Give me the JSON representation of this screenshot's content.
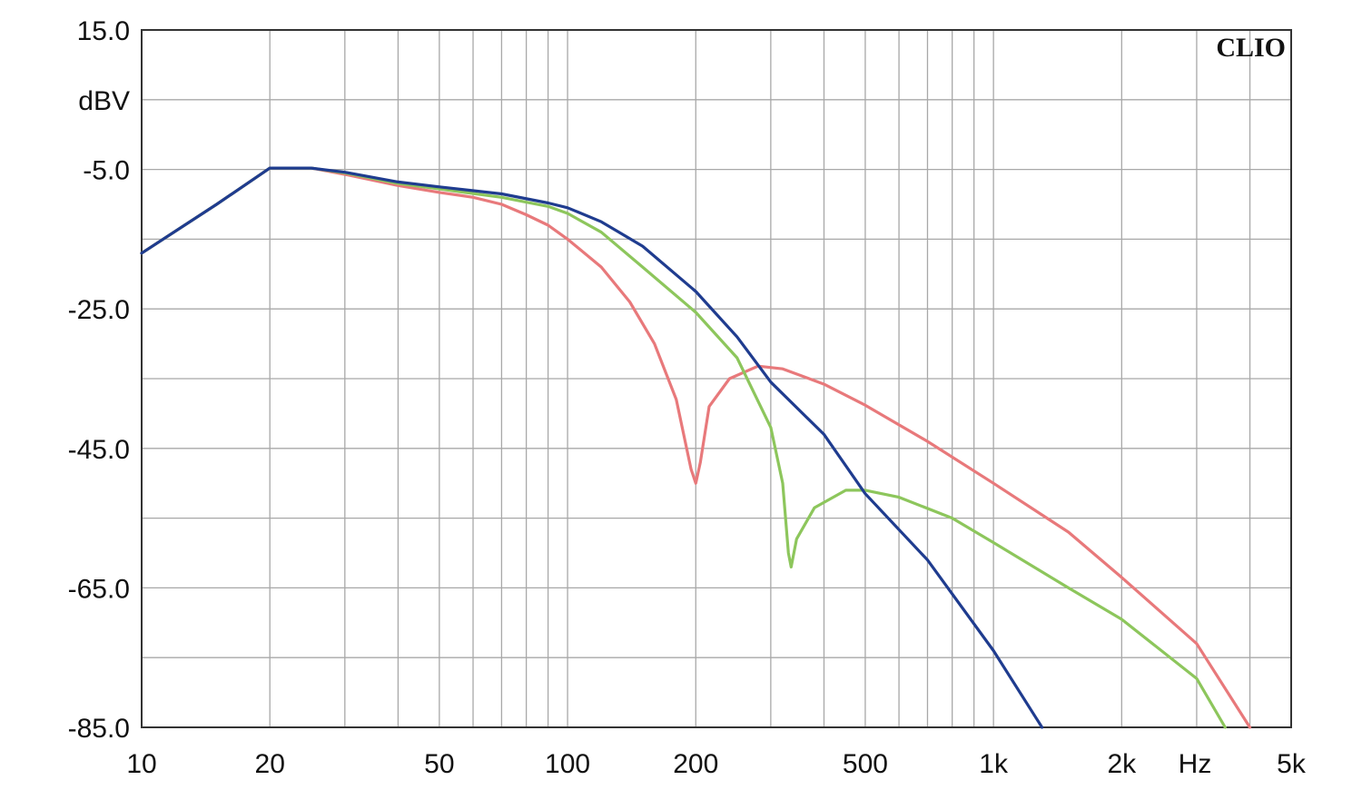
{
  "chart_data": {
    "type": "line",
    "brand": "CLIO",
    "ylabel": "dBV",
    "xlabel": "Hz",
    "x_scale": "log",
    "xlim": [
      10,
      5000
    ],
    "ylim": [
      -85,
      15
    ],
    "grid": true,
    "y_ticks": [
      {
        "value": 15,
        "label": "15.0"
      },
      {
        "value": -5,
        "label": "-5.0"
      },
      {
        "value": -25,
        "label": "-25.0"
      },
      {
        "value": -45,
        "label": "-45.0"
      },
      {
        "value": -65,
        "label": "-65.0"
      },
      {
        "value": -85,
        "label": "-85.0"
      }
    ],
    "y_grid_step": 10,
    "x_ticks": [
      {
        "value": 10,
        "label": "10"
      },
      {
        "value": 20,
        "label": "20"
      },
      {
        "value": 50,
        "label": "50"
      },
      {
        "value": 100,
        "label": "100"
      },
      {
        "value": 200,
        "label": "200"
      },
      {
        "value": 500,
        "label": "500"
      },
      {
        "value": 1000,
        "label": "1k"
      },
      {
        "value": 2000,
        "label": "2k"
      },
      {
        "value": 5000,
        "label": "5k"
      }
    ],
    "x_grid": [
      10,
      20,
      30,
      40,
      50,
      60,
      70,
      80,
      90,
      100,
      200,
      300,
      400,
      500,
      600,
      700,
      800,
      900,
      1000,
      2000,
      3000,
      4000,
      5000
    ],
    "series": [
      {
        "color": "#e8797b",
        "points": [
          [
            10,
            -17
          ],
          [
            15,
            -10
          ],
          [
            20,
            -4.8
          ],
          [
            25,
            -4.8
          ],
          [
            30,
            -5.7
          ],
          [
            40,
            -7.3
          ],
          [
            50,
            -8.3
          ],
          [
            60,
            -9
          ],
          [
            70,
            -10
          ],
          [
            80,
            -11.5
          ],
          [
            90,
            -13
          ],
          [
            100,
            -15
          ],
          [
            120,
            -19
          ],
          [
            140,
            -24
          ],
          [
            160,
            -30
          ],
          [
            180,
            -38
          ],
          [
            195,
            -48
          ],
          [
            200,
            -50
          ],
          [
            205,
            -47
          ],
          [
            215,
            -39
          ],
          [
            240,
            -35
          ],
          [
            280,
            -33.2
          ],
          [
            320,
            -33.6
          ],
          [
            400,
            -35.8
          ],
          [
            500,
            -38.8
          ],
          [
            700,
            -44
          ],
          [
            1000,
            -50
          ],
          [
            1500,
            -57
          ],
          [
            2000,
            -63.5
          ],
          [
            3000,
            -73
          ],
          [
            4000,
            -85
          ]
        ]
      },
      {
        "color": "#8dc65c",
        "points": [
          [
            10,
            -17
          ],
          [
            15,
            -10
          ],
          [
            20,
            -4.8
          ],
          [
            25,
            -4.8
          ],
          [
            30,
            -5.5
          ],
          [
            40,
            -7
          ],
          [
            50,
            -7.8
          ],
          [
            70,
            -9
          ],
          [
            90,
            -10.3
          ],
          [
            100,
            -11.3
          ],
          [
            120,
            -14
          ],
          [
            150,
            -19
          ],
          [
            200,
            -25.5
          ],
          [
            250,
            -32
          ],
          [
            300,
            -42
          ],
          [
            320,
            -50
          ],
          [
            330,
            -60
          ],
          [
            335,
            -62
          ],
          [
            345,
            -58
          ],
          [
            380,
            -53.5
          ],
          [
            450,
            -51
          ],
          [
            500,
            -51
          ],
          [
            600,
            -52
          ],
          [
            800,
            -55
          ],
          [
            1000,
            -58.5
          ],
          [
            1500,
            -65
          ],
          [
            2000,
            -69.5
          ],
          [
            3000,
            -78
          ],
          [
            3500,
            -85
          ]
        ]
      },
      {
        "color": "#1f3c8f",
        "points": [
          [
            10,
            -17
          ],
          [
            15,
            -10
          ],
          [
            20,
            -4.8
          ],
          [
            25,
            -4.8
          ],
          [
            30,
            -5.4
          ],
          [
            40,
            -6.8
          ],
          [
            50,
            -7.5
          ],
          [
            70,
            -8.5
          ],
          [
            90,
            -9.8
          ],
          [
            100,
            -10.5
          ],
          [
            120,
            -12.5
          ],
          [
            150,
            -16
          ],
          [
            200,
            -22.5
          ],
          [
            250,
            -29
          ],
          [
            300,
            -35.5
          ],
          [
            400,
            -43
          ],
          [
            500,
            -51.5
          ],
          [
            700,
            -61
          ],
          [
            1000,
            -74
          ],
          [
            1300,
            -85
          ]
        ]
      }
    ]
  }
}
